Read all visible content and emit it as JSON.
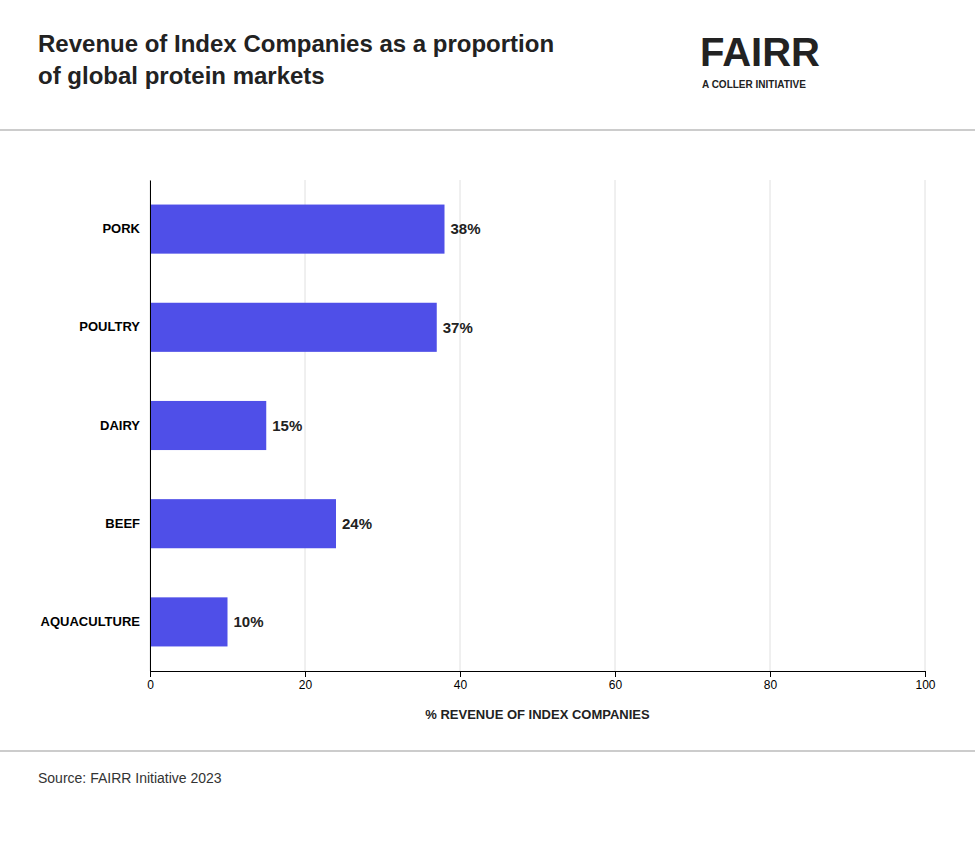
{
  "chart_data": {
    "type": "bar",
    "orientation": "horizontal",
    "title": [
      "Revenue of Index Companies as a proportion",
      "of global protein markets"
    ],
    "categories": [
      "AQUACULTURE",
      "BEEF",
      "DAIRY",
      "POULTRY",
      "PORK"
    ],
    "values": [
      10,
      24,
      15,
      37,
      38
    ],
    "value_labels": [
      "10%",
      "24%",
      "15%",
      "37%",
      "38%"
    ],
    "data_labels": true,
    "color": "#4F4FE8",
    "x_label": "% REVENUE OF INDEX COMPANIES",
    "xlim": [
      0,
      100
    ],
    "xticks": [
      0,
      20,
      40,
      60,
      80,
      100
    ],
    "grid": true,
    "annotations": [
      "FAIRR",
      "A COLLER INITIATIVE",
      "Source: FAIRR Initiative 2023"
    ]
  }
}
